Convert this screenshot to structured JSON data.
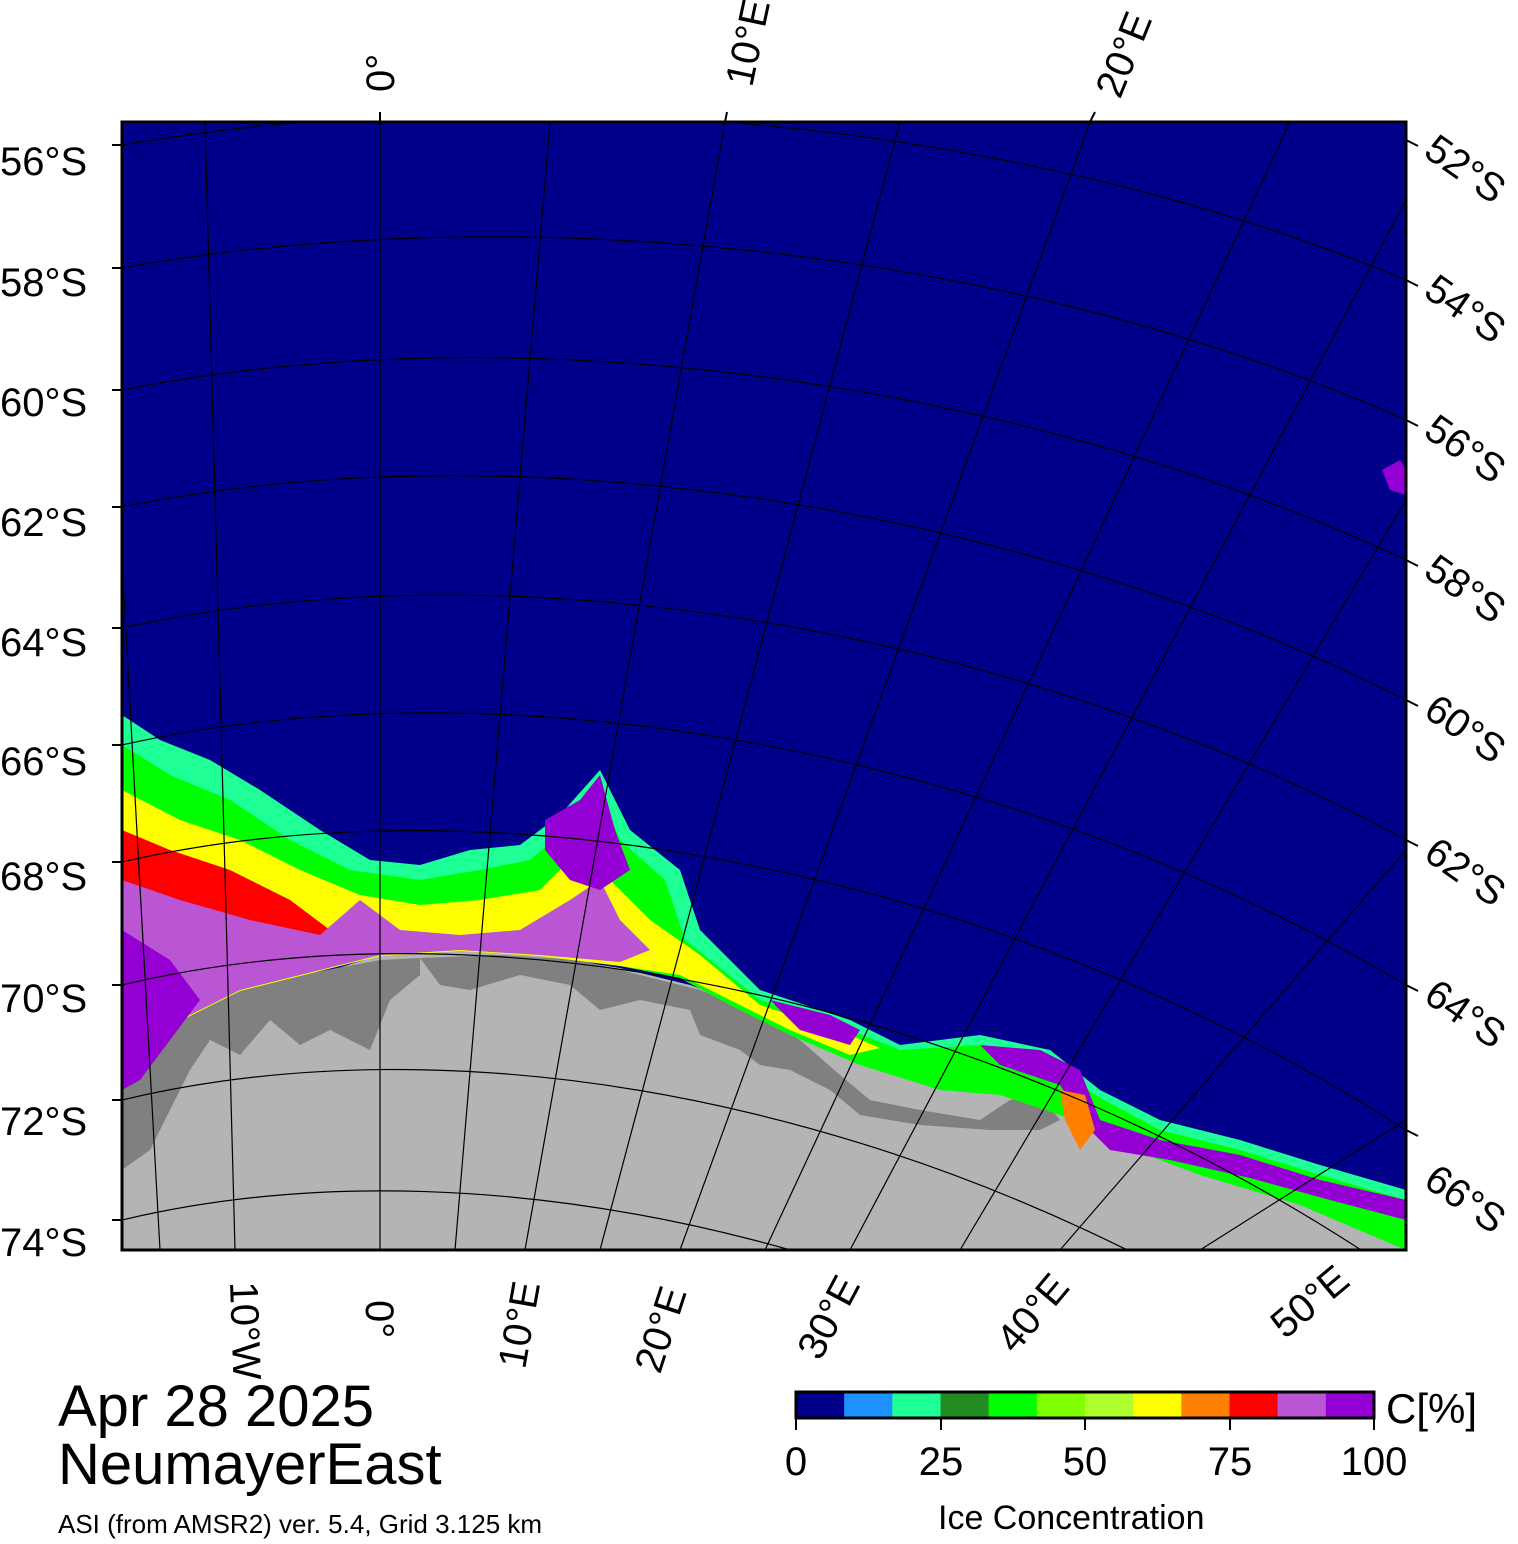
{
  "map": {
    "date": "Apr 28 2025",
    "region": "NeumayerEast",
    "source": "ASI (from AMSR2) ver. 5.4,  Grid 3.125 km",
    "colors": {
      "ocean": "#00008b",
      "land": "#b4b4b4",
      "ice_shelf": "#808080"
    },
    "lat_labels_left": [
      "56°S",
      "58°S",
      "60°S",
      "62°S",
      "64°S",
      "66°S",
      "68°S",
      "70°S",
      "72°S",
      "74°S"
    ],
    "lat_labels_right": [
      "52°S",
      "54°S",
      "56°S",
      "58°S",
      "60°S",
      "62°S",
      "64°S",
      "66°S"
    ],
    "lon_labels_top": [
      "0°",
      "10°E",
      "20°E"
    ],
    "lon_labels_bottom": [
      "10°W",
      "0°",
      "10°E",
      "20°E",
      "30°E",
      "40°E",
      "50°E"
    ]
  },
  "colorbar": {
    "title": "Ice Concentration",
    "unit": "C[%]",
    "ticks": [
      "0",
      "25",
      "50",
      "75",
      "100"
    ],
    "colors": [
      "#00008b",
      "#1e90ff",
      "#1eff96",
      "#228b22",
      "#00ff00",
      "#7fff00",
      "#adff2f",
      "#ffff00",
      "#ff7f00",
      "#ff0000",
      "#ba55d3",
      "#9400d3"
    ]
  }
}
